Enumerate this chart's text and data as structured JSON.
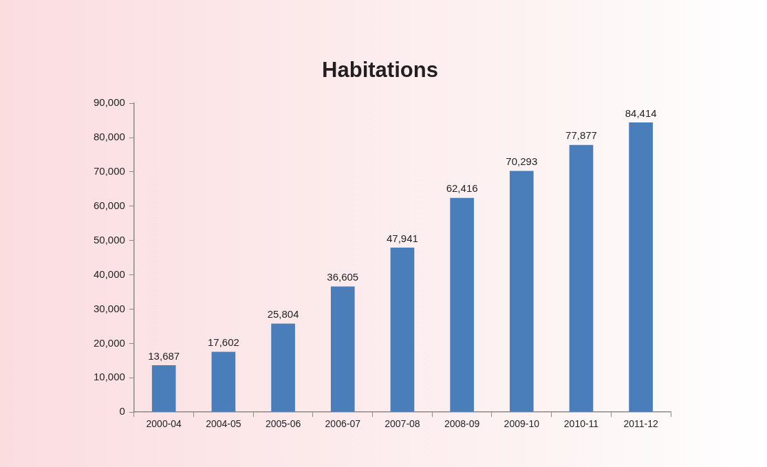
{
  "chart_data": {
    "type": "bar",
    "title": "Habitations",
    "categories": [
      "2000-04",
      "2004-05",
      "2005-06",
      "2006-07",
      "2007-08",
      "2008-09",
      "2009-10",
      "2010-11",
      "2011-12"
    ],
    "values": [
      13687,
      17602,
      25804,
      36605,
      47941,
      62416,
      70293,
      77877,
      84414
    ],
    "value_labels": [
      "13,687",
      "17,602",
      "25,804",
      "36,605",
      "47,941",
      "62,416",
      "70,293",
      "77,877",
      "84,414"
    ],
    "color": "#4a7ebb",
    "ylim": [
      0,
      90000
    ],
    "yticks": [
      0,
      {
        "value": 10000,
        "label": "10,000"
      },
      {
        "value": 20000,
        "label": "20,000"
      },
      {
        "value": 30000,
        "label": "30,000"
      },
      {
        "value": 40000,
        "label": "40,000"
      },
      {
        "value": 50000,
        "label": "50,000"
      },
      {
        "value": 60000,
        "label": "60,000"
      },
      {
        "value": 70000,
        "label": "70,000"
      },
      {
        "value": 80000,
        "label": "80,000"
      },
      {
        "value": 90000,
        "label": "90,000"
      }
    ],
    "grid": false,
    "legend": false
  }
}
